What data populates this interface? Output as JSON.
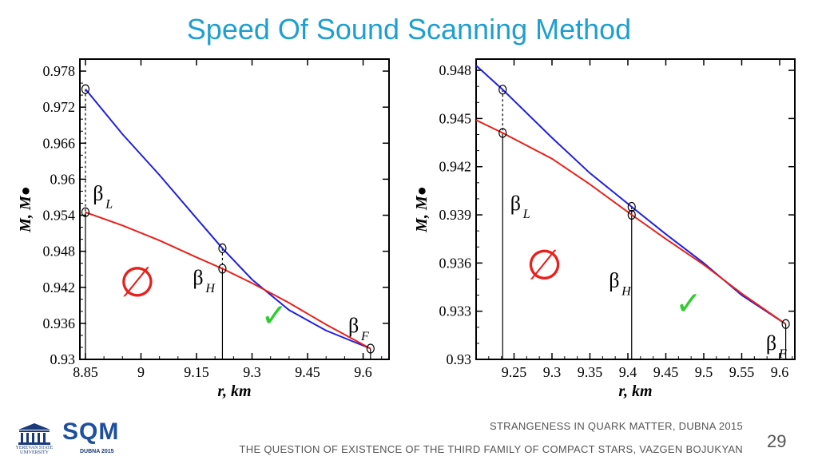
{
  "slide": {
    "title": "Speed Of Sound Scanning Method",
    "footer_line1": "STRANGENESS IN QUARK MATTER,  DUBNA 2015",
    "footer_line2": "THE QUESTION OF EXISTENCE OF THE THIRD FAMILY OF COMPACT STARS, VAZGEN BOJUKYAN",
    "page_number": "29",
    "logo_left_label": "YEREVAN STATE UNIVERSITY",
    "logo_right_word": "SQM",
    "logo_right_sub": "DUBNA 2015"
  },
  "colors": {
    "title": "#1f9fd0",
    "blue_curve": "#1f1fe0",
    "red_curve": "#e8201c",
    "check": "#2ecc2e",
    "empty_set": "#e8201c"
  },
  "chart_data": [
    {
      "type": "line",
      "xlabel": "r, km",
      "ylabel": "M, M●",
      "xlim": [
        8.835,
        9.67
      ],
      "ylim": [
        0.93,
        0.98
      ],
      "xticks": [
        8.85,
        9,
        9.15,
        9.3,
        9.45,
        9.6
      ],
      "xtick_labels": [
        "8.85",
        "9",
        "9.15",
        "9.3",
        "9.45",
        "9.6"
      ],
      "yticks": [
        0.93,
        0.936,
        0.942,
        0.948,
        0.954,
        0.96,
        0.966,
        0.972,
        0.978
      ],
      "ytick_labels": [
        "0.93",
        "0.936",
        "0.942",
        "0.948",
        "0.954",
        "0.96",
        "0.966",
        "0.972",
        "0.978"
      ],
      "series": [
        {
          "color": "#1f1fe0",
          "x": [
            8.85,
            8.95,
            9.05,
            9.15,
            9.22,
            9.3,
            9.4,
            9.5,
            9.62
          ],
          "y": [
            0.975,
            0.9675,
            0.9607,
            0.9535,
            0.9485,
            0.9433,
            0.9382,
            0.9348,
            0.9318
          ]
        },
        {
          "color": "#e8201c",
          "x": [
            8.85,
            8.95,
            9.05,
            9.15,
            9.22,
            9.3,
            9.4,
            9.5,
            9.62
          ],
          "y": [
            0.9545,
            0.9523,
            0.9498,
            0.947,
            0.9451,
            0.9427,
            0.9394,
            0.9358,
            0.9318
          ]
        }
      ],
      "markers": [
        {
          "x": 8.85,
          "y": 0.975
        },
        {
          "x": 8.85,
          "y": 0.9545
        },
        {
          "x": 9.22,
          "y": 0.9485
        },
        {
          "x": 9.22,
          "y": 0.9451
        },
        {
          "x": 9.62,
          "y": 0.9318
        }
      ],
      "vlines": [
        {
          "x": 8.85,
          "y": 0.9545,
          "dashed_to": 0.975
        },
        {
          "x": 9.22,
          "y": 0.9451,
          "dashed_to": 0.9485
        },
        {
          "x": 9.62,
          "y": 0.9318
        }
      ],
      "annotations": [
        {
          "text": "β",
          "sub": "L",
          "x": 8.87,
          "y": 0.9565
        },
        {
          "text": "β",
          "sub": "H",
          "x": 9.14,
          "y": 0.9425
        },
        {
          "text": "β",
          "sub": "F",
          "x": 9.56,
          "y": 0.9345
        },
        {
          "text": "∅",
          "x": 8.99,
          "y": 0.9405
        },
        {
          "text": "✓",
          "x": 9.36,
          "y": 0.9355
        }
      ]
    },
    {
      "type": "line",
      "xlabel": "r, km",
      "ylabel": "M, M●",
      "xlim": [
        9.2,
        9.62
      ],
      "ylim": [
        0.93,
        0.9487
      ],
      "xticks": [
        9.25,
        9.3,
        9.35,
        9.4,
        9.45,
        9.5,
        9.55,
        9.6
      ],
      "xtick_labels": [
        "9.25",
        "9.3",
        "9.35",
        "9.4",
        "9.45",
        "9.5",
        "9.55",
        "9.6"
      ],
      "yticks": [
        0.93,
        0.933,
        0.936,
        0.939,
        0.942,
        0.945,
        0.948
      ],
      "ytick_labels": [
        "0.93",
        "0.933",
        "0.936",
        "0.939",
        "0.942",
        "0.945",
        "0.948"
      ],
      "series": [
        {
          "color": "#1f1fe0",
          "x": [
            9.2,
            9.235,
            9.3,
            9.35,
            9.405,
            9.45,
            9.5,
            9.55,
            9.608
          ],
          "y": [
            0.9483,
            0.9468,
            0.9438,
            0.9416,
            0.9395,
            0.9378,
            0.936,
            0.934,
            0.9322
          ]
        },
        {
          "color": "#e8201c",
          "x": [
            9.2,
            9.235,
            9.3,
            9.35,
            9.405,
            9.45,
            9.5,
            9.55,
            9.608
          ],
          "y": [
            0.9449,
            0.9441,
            0.9425,
            0.9409,
            0.939,
            0.9375,
            0.9359,
            0.9341,
            0.9322
          ]
        }
      ],
      "markers": [
        {
          "x": 9.235,
          "y": 0.9468
        },
        {
          "x": 9.235,
          "y": 0.9441
        },
        {
          "x": 9.405,
          "y": 0.9395
        },
        {
          "x": 9.405,
          "y": 0.939
        },
        {
          "x": 9.608,
          "y": 0.9322
        }
      ],
      "vlines": [
        {
          "x": 9.235,
          "y": 0.9441,
          "dashed_to": 0.9468
        },
        {
          "x": 9.405,
          "y": 0.939,
          "dashed_to": 0.9395
        },
        {
          "x": 9.608,
          "y": 0.9322
        }
      ],
      "annotations": [
        {
          "text": "β",
          "sub": "L",
          "x": 9.245,
          "y": 0.9393
        },
        {
          "text": "β",
          "sub": "H",
          "x": 9.375,
          "y": 0.9345
        },
        {
          "text": "β",
          "sub": "F",
          "x": 9.582,
          "y": 0.9306
        },
        {
          "text": "∅",
          "x": 9.29,
          "y": 0.935
        },
        {
          "text": "✓",
          "x": 9.48,
          "y": 0.9328
        }
      ]
    }
  ]
}
